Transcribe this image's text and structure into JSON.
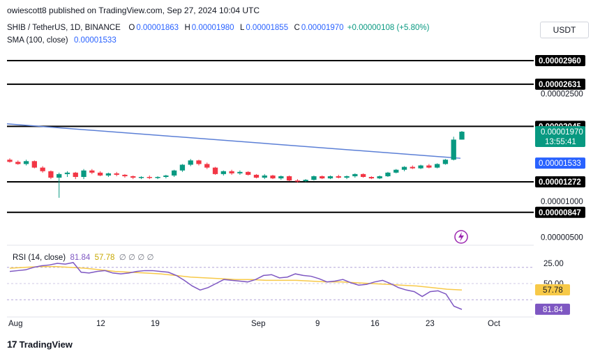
{
  "header": {
    "publisher": "owiescott8 published on TradingView.com, Sep 27, 2024 10:04 UTC"
  },
  "legend": {
    "symbol": "SHIB / TetherUS, 1D, BINANCE",
    "o_label": "O",
    "o_value": "0.00001863",
    "h_label": "H",
    "h_value": "0.00001980",
    "l_label": "L",
    "l_value": "0.00001855",
    "c_label": "C",
    "c_value": "0.00001970",
    "change": "+0.00000108 (+5.80%)",
    "sma_label": "SMA (100, close)",
    "sma_value": "0.00001533"
  },
  "currency": "USDT",
  "price_axis": {
    "ticks": [
      "0.00002500",
      "0.00001000",
      "0.00000500"
    ],
    "levels": [
      "0.00002960",
      "0.00002631",
      "0.00002045",
      "0.00001272",
      "0.00000847"
    ],
    "current_price": "0.00001970",
    "countdown": "13:55:41",
    "sma_price": "0.00001533"
  },
  "rsi": {
    "label": "RSI (14, close)",
    "value": "81.84",
    "ma_value": "57.78",
    "placeholders": [
      "∅",
      "∅",
      "∅",
      "∅"
    ],
    "axis_ticks": [
      "50.00",
      "25.00"
    ],
    "badge_rsi": "81.84",
    "badge_ma": "57.78",
    "colors": {
      "rsi": "#7e57c2",
      "ma": "#f7c948",
      "band": "#ede7f6"
    }
  },
  "time_axis": [
    "Aug",
    "12",
    "19",
    "Sep",
    "9",
    "16",
    "23",
    "Oct"
  ],
  "footer": {
    "brand": "TradingView"
  },
  "colors": {
    "up": "#089981",
    "down": "#f23645",
    "sma": "#5b7fd6",
    "level": "#000000"
  },
  "chart_data": {
    "type": "candlestick",
    "symbol": "SHIB/USDT",
    "interval": "1D",
    "ylim": [
      3.5e-06,
      3.15e-05
    ],
    "horizontal_levels": [
      2.96e-05,
      2.631e-05,
      2.045e-05,
      1.272e-05,
      8.47e-06
    ],
    "candles": [
      {
        "o": 1.58e-05,
        "h": 1.6e-05,
        "l": 1.54e-05,
        "c": 1.55e-05
      },
      {
        "o": 1.55e-05,
        "h": 1.57e-05,
        "l": 1.51e-05,
        "c": 1.52e-05
      },
      {
        "o": 1.52e-05,
        "h": 1.58e-05,
        "l": 1.5e-05,
        "c": 1.56e-05
      },
      {
        "o": 1.56e-05,
        "h": 1.57e-05,
        "l": 1.46e-05,
        "c": 1.47e-05
      },
      {
        "o": 1.47e-05,
        "h": 1.49e-05,
        "l": 1.4e-05,
        "c": 1.42e-05
      },
      {
        "o": 1.42e-05,
        "h": 1.43e-05,
        "l": 1.31e-05,
        "c": 1.33e-05
      },
      {
        "o": 1.33e-05,
        "h": 1.4e-05,
        "l": 1.05e-05,
        "c": 1.38e-05
      },
      {
        "o": 1.38e-05,
        "h": 1.42e-05,
        "l": 1.34e-05,
        "c": 1.4e-05
      },
      {
        "o": 1.4e-05,
        "h": 1.41e-05,
        "l": 1.31e-05,
        "c": 1.34e-05
      },
      {
        "o": 1.34e-05,
        "h": 1.45e-05,
        "l": 1.31e-05,
        "c": 1.43e-05
      },
      {
        "o": 1.43e-05,
        "h": 1.45e-05,
        "l": 1.38e-05,
        "c": 1.4e-05
      },
      {
        "o": 1.4e-05,
        "h": 1.42e-05,
        "l": 1.35e-05,
        "c": 1.36e-05
      },
      {
        "o": 1.36e-05,
        "h": 1.4e-05,
        "l": 1.34e-05,
        "c": 1.39e-05
      },
      {
        "o": 1.39e-05,
        "h": 1.41e-05,
        "l": 1.35e-05,
        "c": 1.37e-05
      },
      {
        "o": 1.37e-05,
        "h": 1.38e-05,
        "l": 1.33e-05,
        "c": 1.35e-05
      },
      {
        "o": 1.35e-05,
        "h": 1.36e-05,
        "l": 1.31e-05,
        "c": 1.33e-05
      },
      {
        "o": 1.33e-05,
        "h": 1.35e-05,
        "l": 1.31e-05,
        "c": 1.34e-05
      },
      {
        "o": 1.34e-05,
        "h": 1.36e-05,
        "l": 1.31e-05,
        "c": 1.33e-05
      },
      {
        "o": 1.33e-05,
        "h": 1.35e-05,
        "l": 1.31e-05,
        "c": 1.34e-05
      },
      {
        "o": 1.34e-05,
        "h": 1.37e-05,
        "l": 1.32e-05,
        "c": 1.36e-05
      },
      {
        "o": 1.36e-05,
        "h": 1.44e-05,
        "l": 1.34e-05,
        "c": 1.43e-05
      },
      {
        "o": 1.43e-05,
        "h": 1.52e-05,
        "l": 1.41e-05,
        "c": 1.51e-05
      },
      {
        "o": 1.51e-05,
        "h": 1.59e-05,
        "l": 1.49e-05,
        "c": 1.57e-05
      },
      {
        "o": 1.57e-05,
        "h": 1.58e-05,
        "l": 1.5e-05,
        "c": 1.52e-05
      },
      {
        "o": 1.52e-05,
        "h": 1.54e-05,
        "l": 1.45e-05,
        "c": 1.47e-05
      },
      {
        "o": 1.47e-05,
        "h": 1.48e-05,
        "l": 1.37e-05,
        "c": 1.38e-05
      },
      {
        "o": 1.38e-05,
        "h": 1.43e-05,
        "l": 1.36e-05,
        "c": 1.42e-05
      },
      {
        "o": 1.42e-05,
        "h": 1.44e-05,
        "l": 1.37e-05,
        "c": 1.39e-05
      },
      {
        "o": 1.39e-05,
        "h": 1.43e-05,
        "l": 1.37e-05,
        "c": 1.41e-05
      },
      {
        "o": 1.41e-05,
        "h": 1.42e-05,
        "l": 1.36e-05,
        "c": 1.37e-05
      },
      {
        "o": 1.37e-05,
        "h": 1.38e-05,
        "l": 1.32e-05,
        "c": 1.33e-05
      },
      {
        "o": 1.33e-05,
        "h": 1.38e-05,
        "l": 1.31e-05,
        "c": 1.36e-05
      },
      {
        "o": 1.36e-05,
        "h": 1.37e-05,
        "l": 1.31e-05,
        "c": 1.32e-05
      },
      {
        "o": 1.32e-05,
        "h": 1.36e-05,
        "l": 1.3e-05,
        "c": 1.35e-05
      },
      {
        "o": 1.35e-05,
        "h": 1.36e-05,
        "l": 1.28e-05,
        "c": 1.29e-05
      },
      {
        "o": 1.29e-05,
        "h": 1.31e-05,
        "l": 1.26e-05,
        "c": 1.28e-05
      },
      {
        "o": 1.28e-05,
        "h": 1.31e-05,
        "l": 1.27e-05,
        "c": 1.3e-05
      },
      {
        "o": 1.3e-05,
        "h": 1.36e-05,
        "l": 1.29e-05,
        "c": 1.35e-05
      },
      {
        "o": 1.35e-05,
        "h": 1.36e-05,
        "l": 1.31e-05,
        "c": 1.32e-05
      },
      {
        "o": 1.32e-05,
        "h": 1.36e-05,
        "l": 1.31e-05,
        "c": 1.35e-05
      },
      {
        "o": 1.35e-05,
        "h": 1.37e-05,
        "l": 1.32e-05,
        "c": 1.33e-05
      },
      {
        "o": 1.33e-05,
        "h": 1.36e-05,
        "l": 1.31e-05,
        "c": 1.35e-05
      },
      {
        "o": 1.35e-05,
        "h": 1.39e-05,
        "l": 1.33e-05,
        "c": 1.38e-05
      },
      {
        "o": 1.38e-05,
        "h": 1.39e-05,
        "l": 1.33e-05,
        "c": 1.34e-05
      },
      {
        "o": 1.34e-05,
        "h": 1.35e-05,
        "l": 1.31e-05,
        "c": 1.32e-05
      },
      {
        "o": 1.32e-05,
        "h": 1.36e-05,
        "l": 1.31e-05,
        "c": 1.35e-05
      },
      {
        "o": 1.35e-05,
        "h": 1.41e-05,
        "l": 1.34e-05,
        "c": 1.4e-05
      },
      {
        "o": 1.4e-05,
        "h": 1.45e-05,
        "l": 1.39e-05,
        "c": 1.44e-05
      },
      {
        "o": 1.44e-05,
        "h": 1.49e-05,
        "l": 1.42e-05,
        "c": 1.48e-05
      },
      {
        "o": 1.48e-05,
        "h": 1.5e-05,
        "l": 1.45e-05,
        "c": 1.46e-05
      },
      {
        "o": 1.46e-05,
        "h": 1.51e-05,
        "l": 1.45e-05,
        "c": 1.5e-05
      },
      {
        "o": 1.5e-05,
        "h": 1.52e-05,
        "l": 1.46e-05,
        "c": 1.47e-05
      },
      {
        "o": 1.47e-05,
        "h": 1.53e-05,
        "l": 1.46e-05,
        "c": 1.52e-05
      },
      {
        "o": 1.52e-05,
        "h": 1.59e-05,
        "l": 1.51e-05,
        "c": 1.58e-05
      },
      {
        "o": 1.58e-05,
        "h": 1.9e-05,
        "l": 1.57e-05,
        "c": 1.86e-05
      },
      {
        "o": 1.86e-05,
        "h": 1.98e-05,
        "l": 1.86e-05,
        "c": 1.97e-05
      }
    ],
    "sma": [
      2.08e-05,
      1.6e-05
    ],
    "rsi_series": [
      35,
      34,
      33,
      30,
      28,
      27,
      25,
      26,
      24,
      36,
      37,
      35,
      34,
      37,
      38,
      37,
      35,
      34,
      34,
      35,
      36,
      40,
      46,
      53,
      58,
      55,
      50,
      45,
      46,
      47,
      48,
      45,
      40,
      39,
      43,
      42,
      38,
      40,
      41,
      44,
      48,
      47,
      45,
      49,
      52,
      51,
      48,
      46,
      50,
      55,
      58,
      60,
      66,
      60,
      59,
      63,
      78,
      82
    ],
    "rsi_ma": [
      31,
      30,
      29,
      29,
      30,
      31,
      33,
      35,
      36,
      37,
      38,
      40,
      42,
      43,
      44,
      45,
      45,
      46,
      46,
      46,
      47,
      48,
      48,
      49,
      50,
      51,
      52,
      53,
      55,
      57,
      58
    ],
    "rsi_ylim": [
      0,
      100
    ],
    "rsi_levels": [
      70,
      50,
      30
    ]
  }
}
